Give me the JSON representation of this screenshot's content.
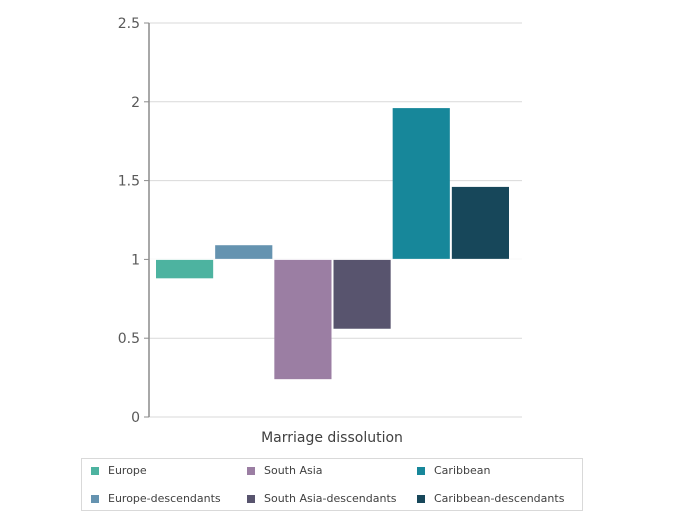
{
  "chart_data": {
    "type": "bar",
    "categories": [
      "Marriage dissolution"
    ],
    "baseline": 1,
    "ylim": [
      0,
      2.5
    ],
    "yticks": [
      "0",
      "0.5",
      "1",
      "1.5",
      "2",
      "2.5"
    ],
    "ytick_values": [
      0,
      0.5,
      1,
      1.5,
      2,
      2.5
    ],
    "grid": true,
    "legend_position": "bottom",
    "series": [
      {
        "name": "Europe",
        "values": [
          0.88
        ],
        "color": "#4db3a0"
      },
      {
        "name": "Europe-descendants",
        "values": [
          1.09
        ],
        "color": "#6593b0"
      },
      {
        "name": "South Asia",
        "values": [
          0.24
        ],
        "color": "#9b7ea3"
      },
      {
        "name": "South Asia-descendants",
        "values": [
          0.56
        ],
        "color": "#58546e"
      },
      {
        "name": "Caribbean",
        "values": [
          1.96
        ],
        "color": "#17879a"
      },
      {
        "name": "Caribbean-descendants",
        "values": [
          1.46
        ],
        "color": "#17475a"
      }
    ]
  }
}
